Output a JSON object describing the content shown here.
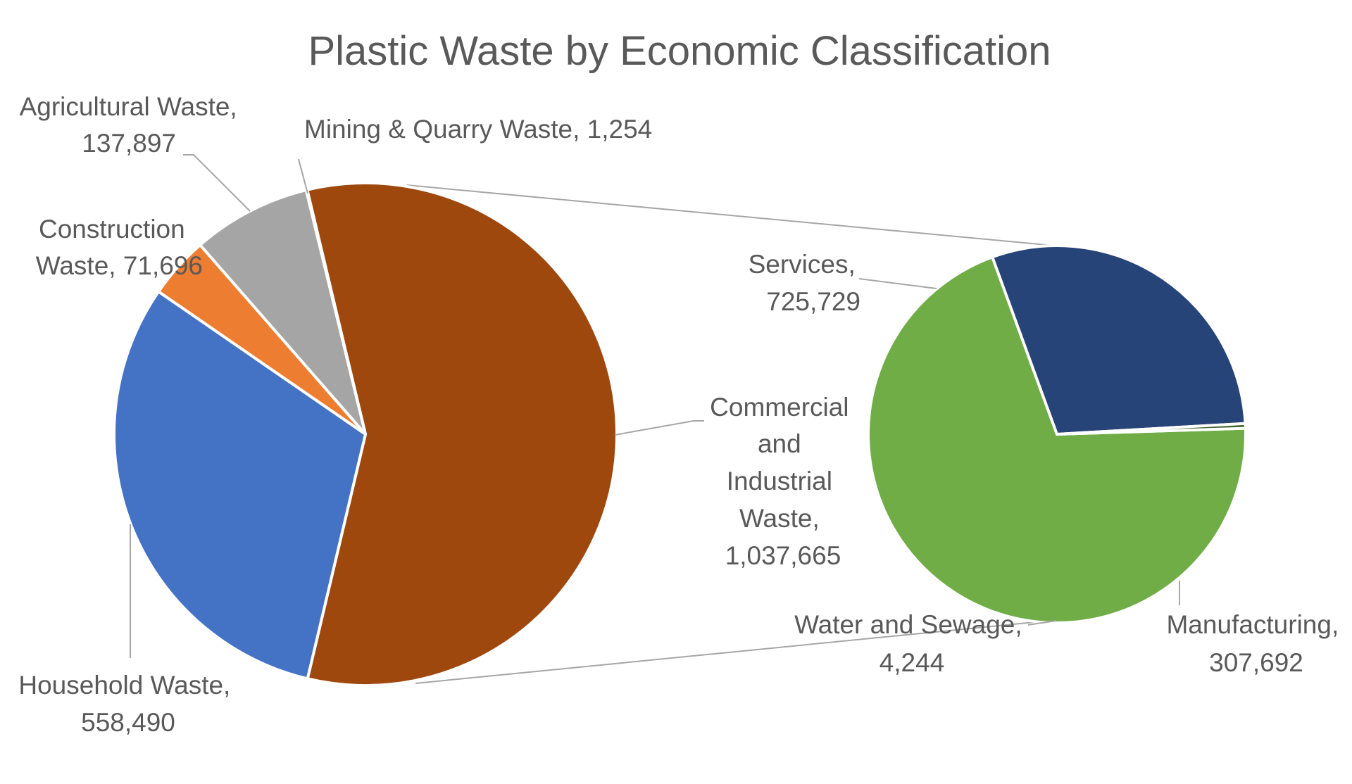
{
  "chart_data": {
    "type": "pie",
    "subtype": "pie-of-pie",
    "title": "Plastic Waste by Economic Classification",
    "main_pie": {
      "slices": [
        {
          "name": "Commercial and Industrial Waste",
          "value": 1037665,
          "label": "Commercial and Industrial Waste, 1,037,665",
          "color": "#9e480e",
          "exploded_to_secondary": true
        },
        {
          "name": "Household Waste",
          "value": 558490,
          "label": "Household Waste, 558,490",
          "color": "#4472c4"
        },
        {
          "name": "Construction Waste",
          "value": 71696,
          "label": "Construction Waste, 71,696",
          "color": "#ed7d31"
        },
        {
          "name": "Agricultural Waste",
          "value": 137897,
          "label": "Agricultural Waste, 137,897",
          "color": "#a5a5a5"
        },
        {
          "name": "Mining & Quarry Waste",
          "value": 1254,
          "label": "Mining & Quarry Waste, 1,254",
          "color": "#ffc000"
        }
      ]
    },
    "secondary_pie": {
      "slices": [
        {
          "name": "Services",
          "value": 725729,
          "label": "Services, 725,729",
          "color": "#70ad47"
        },
        {
          "name": "Manufacturing",
          "value": 307692,
          "label": "Manufacturing, 307,692",
          "color": "#264478"
        },
        {
          "name": "Water and Sewage",
          "value": 4244,
          "label": "Water and Sewage, 4,244",
          "color": "#43682b"
        }
      ]
    }
  }
}
